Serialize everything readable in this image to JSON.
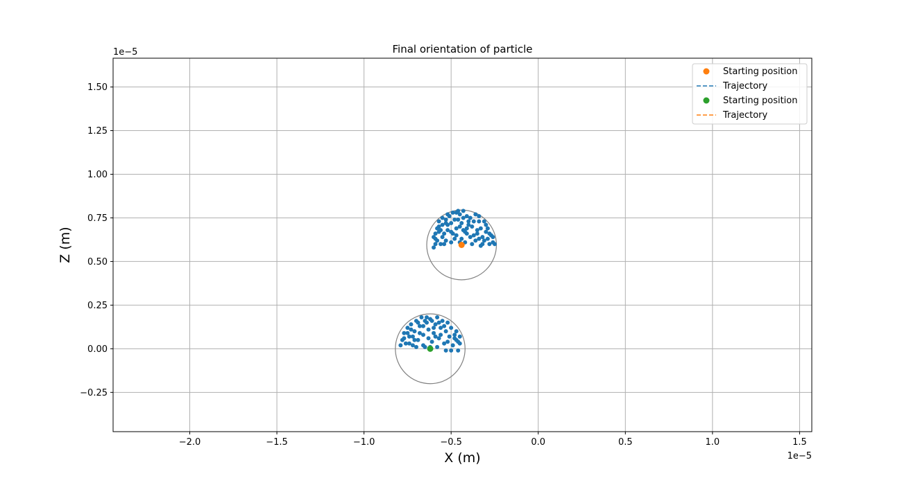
{
  "chart_data": {
    "type": "scatter",
    "title": "Final orientation of particle",
    "xlabel": "X (m)",
    "ylabel": "Z (m)",
    "x_offset_text": "1e−5",
    "y_offset_text": "1e−5",
    "xlim": [
      -2.44,
      1.57
    ],
    "ylim": [
      -0.475,
      1.665
    ],
    "x_ticks": [
      -2.0,
      -1.5,
      -1.0,
      -0.5,
      0.0,
      0.5,
      1.0,
      1.5
    ],
    "x_tick_labels": [
      "−2.0",
      "−1.5",
      "−1.0",
      "−0.5",
      "0.0",
      "0.5",
      "1.0",
      "1.5"
    ],
    "y_ticks": [
      -0.25,
      0.0,
      0.25,
      0.5,
      0.75,
      1.0,
      1.25,
      1.5
    ],
    "y_tick_labels": [
      "−0.25",
      "0.00",
      "0.25",
      "0.50",
      "0.75",
      "1.00",
      "1.25",
      "1.50"
    ],
    "grid": true,
    "legend_position": "top-right",
    "legend": [
      {
        "label": "Starting position",
        "kind": "marker",
        "color": "#ff7f0e"
      },
      {
        "label": "Trajectory",
        "kind": "dashed",
        "color": "#1f77b4"
      },
      {
        "label": "Starting position",
        "kind": "marker",
        "color": "#2ca02c"
      },
      {
        "label": "Trajectory",
        "kind": "dashed",
        "color": "#ff7f0e"
      }
    ],
    "particles": [
      {
        "center": [
          -0.44,
          0.595
        ],
        "radius": 0.2,
        "start_color": "#ff7f0e",
        "outline_color": "#808080"
      },
      {
        "center": [
          -0.62,
          0.0
        ],
        "radius": 0.2,
        "start_color": "#2ca02c",
        "outline_color": "#808080"
      }
    ],
    "trajectory_color": "#1f77b4",
    "trajectory_points": [
      [
        -0.6,
        0.58
      ],
      [
        -0.59,
        0.6
      ],
      [
        -0.6,
        0.64
      ],
      [
        -0.59,
        0.66
      ],
      [
        -0.57,
        0.67
      ],
      [
        -0.58,
        0.62
      ],
      [
        -0.56,
        0.6
      ],
      [
        -0.55,
        0.64
      ],
      [
        -0.57,
        0.7
      ],
      [
        -0.55,
        0.71
      ],
      [
        -0.54,
        0.66
      ],
      [
        -0.53,
        0.62
      ],
      [
        -0.52,
        0.68
      ],
      [
        -0.53,
        0.74
      ],
      [
        -0.51,
        0.76
      ],
      [
        -0.5,
        0.72
      ],
      [
        -0.49,
        0.66
      ],
      [
        -0.5,
        0.61
      ],
      [
        -0.48,
        0.63
      ],
      [
        -0.47,
        0.69
      ],
      [
        -0.46,
        0.74
      ],
      [
        -0.47,
        0.78
      ],
      [
        -0.45,
        0.77
      ],
      [
        -0.44,
        0.72
      ],
      [
        -0.43,
        0.68
      ],
      [
        -0.44,
        0.63
      ],
      [
        -0.42,
        0.61
      ],
      [
        -0.41,
        0.66
      ],
      [
        -0.4,
        0.71
      ],
      [
        -0.41,
        0.76
      ],
      [
        -0.39,
        0.75
      ],
      [
        -0.38,
        0.7
      ],
      [
        -0.37,
        0.65
      ],
      [
        -0.38,
        0.6
      ],
      [
        -0.36,
        0.62
      ],
      [
        -0.35,
        0.68
      ],
      [
        -0.34,
        0.73
      ],
      [
        -0.33,
        0.69
      ],
      [
        -0.32,
        0.64
      ],
      [
        -0.33,
        0.59
      ],
      [
        -0.31,
        0.62
      ],
      [
        -0.3,
        0.67
      ],
      [
        -0.29,
        0.63
      ],
      [
        -0.28,
        0.6
      ],
      [
        -0.27,
        0.65
      ],
      [
        -0.26,
        0.61
      ],
      [
        -0.25,
        0.6
      ],
      [
        -0.43,
        0.79
      ],
      [
        -0.46,
        0.79
      ],
      [
        -0.49,
        0.78
      ],
      [
        -0.52,
        0.77
      ],
      [
        -0.55,
        0.75
      ],
      [
        -0.57,
        0.73
      ],
      [
        -0.58,
        0.69
      ],
      [
        -0.36,
        0.77
      ],
      [
        -0.34,
        0.76
      ],
      [
        -0.31,
        0.73
      ],
      [
        -0.3,
        0.71
      ],
      [
        -0.29,
        0.69
      ],
      [
        -0.4,
        0.73
      ],
      [
        -0.45,
        0.7
      ],
      [
        -0.48,
        0.74
      ],
      [
        -0.52,
        0.71
      ],
      [
        -0.56,
        0.68
      ],
      [
        -0.39,
        0.64
      ],
      [
        -0.42,
        0.67
      ],
      [
        -0.35,
        0.66
      ],
      [
        -0.32,
        0.6
      ],
      [
        -0.54,
        0.6
      ],
      [
        -0.47,
        0.65
      ],
      [
        -0.43,
        0.75
      ],
      [
        -0.37,
        0.73
      ],
      [
        -0.5,
        0.67
      ],
      [
        -0.28,
        0.66
      ],
      [
        -0.26,
        0.64
      ],
      [
        -0.59,
        0.63
      ],
      [
        -0.53,
        0.72
      ],
      [
        -0.41,
        0.69
      ],
      [
        -0.45,
        0.61
      ],
      [
        -0.34,
        0.63
      ],
      [
        -0.79,
        0.02
      ],
      [
        -0.78,
        0.05
      ],
      [
        -0.77,
        0.09
      ],
      [
        -0.76,
        0.03
      ],
      [
        -0.75,
        0.12
      ],
      [
        -0.74,
        0.07
      ],
      [
        -0.73,
        0.14
      ],
      [
        -0.72,
        0.02
      ],
      [
        -0.71,
        0.1
      ],
      [
        -0.7,
        0.16
      ],
      [
        -0.69,
        0.05
      ],
      [
        -0.68,
        0.13
      ],
      [
        -0.67,
        0.18
      ],
      [
        -0.66,
        0.08
      ],
      [
        -0.65,
        0.01
      ],
      [
        -0.64,
        0.15
      ],
      [
        -0.63,
        0.11
      ],
      [
        -0.62,
        0.17
      ],
      [
        -0.61,
        0.04
      ],
      [
        -0.6,
        0.09
      ],
      [
        -0.59,
        0.14
      ],
      [
        -0.58,
        0.18
      ],
      [
        -0.57,
        0.06
      ],
      [
        -0.56,
        0.12
      ],
      [
        -0.55,
        0.16
      ],
      [
        -0.54,
        0.03
      ],
      [
        -0.53,
        0.1
      ],
      [
        -0.52,
        0.15
      ],
      [
        -0.51,
        0.07
      ],
      [
        -0.5,
        0.12
      ],
      [
        -0.49,
        0.02
      ],
      [
        -0.48,
        0.08
      ],
      [
        -0.47,
        0.05
      ],
      [
        -0.46,
        -0.01
      ],
      [
        -0.45,
        0.03
      ],
      [
        -0.47,
        0.1
      ],
      [
        -0.5,
        -0.01
      ],
      [
        -0.53,
        -0.01
      ],
      [
        -0.58,
        0.01
      ],
      [
        -0.66,
        0.02
      ],
      [
        -0.71,
        0.05
      ],
      [
        -0.75,
        0.09
      ],
      [
        -0.63,
        0.06
      ],
      [
        -0.68,
        0.09
      ],
      [
        -0.56,
        0.08
      ],
      [
        -0.52,
        0.04
      ],
      [
        -0.6,
        0.12
      ],
      [
        -0.64,
        0.18
      ],
      [
        -0.69,
        0.15
      ],
      [
        -0.73,
        0.11
      ],
      [
        -0.77,
        0.06
      ],
      [
        -0.61,
        0.16
      ],
      [
        -0.57,
        0.15
      ],
      [
        -0.48,
        0.06
      ],
      [
        -0.66,
        0.13
      ],
      [
        -0.72,
        0.07
      ],
      [
        -0.54,
        0.13
      ],
      [
        -0.45,
        0.07
      ],
      [
        -0.46,
        0.04
      ],
      [
        -0.62,
        0.01
      ],
      [
        -0.59,
        0.07
      ],
      [
        -0.7,
        0.01
      ],
      [
        -0.74,
        0.03
      ],
      [
        -0.65,
        0.16
      ]
    ]
  }
}
